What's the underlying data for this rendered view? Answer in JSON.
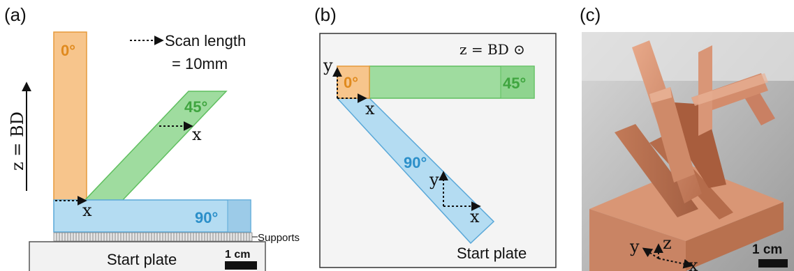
{
  "panels": {
    "a": {
      "label": "(a)",
      "scan_text_line1": "Scan length",
      "scan_text_line2": "= 10mm",
      "axis_label": "z = BD",
      "angle_0": "0°",
      "angle_45": "45°",
      "angle_90": "90°",
      "x_label_45": "x",
      "x_label_90": "x",
      "supports_label": "Supports",
      "start_plate_label": "Start plate",
      "scale_label": "1 cm"
    },
    "b": {
      "label": "(b)",
      "header": "z = BD ⊙",
      "y_label_top": "y",
      "x_label_top": "x",
      "angle_0": "0°",
      "angle_45": "45°",
      "angle_90": "90°",
      "y_label_mid": "y",
      "x_label_mid": "x",
      "start_plate_label": "Start plate"
    },
    "c": {
      "label": "(c)",
      "y_label": "y",
      "z_label": "z",
      "x_label": "x",
      "scale_label": "1 cm"
    }
  },
  "colors": {
    "orange_fill": "#f7c58c",
    "orange_stroke": "#e59a3b",
    "orange_text": "#e08a1e",
    "green_fill": "#9fdc9f",
    "green_stroke": "#5fbf5f",
    "green_text": "#3fa53f",
    "blue_fill": "#b4dcf2",
    "blue_stroke": "#5aa8d8",
    "blue_text": "#2b8fc9",
    "copper": "#d7916f"
  }
}
